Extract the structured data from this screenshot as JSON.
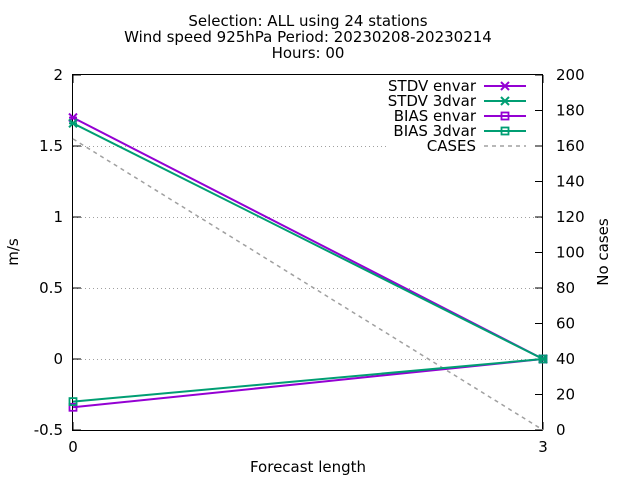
{
  "chart_data": {
    "type": "line",
    "title_lines": [
      "Selection: ALL using    24 stations",
      "Wind speed 925hPa   Period: 20230208-20230214",
      "Hours: 00"
    ],
    "xlabel": "Forecast length",
    "ylabel": "m/s",
    "y2label": "No cases",
    "x": [
      0,
      3
    ],
    "xticks": [
      "0",
      "3"
    ],
    "xlim": [
      0,
      3
    ],
    "ylim": [
      -0.5,
      2
    ],
    "yticks": [
      "-0.5",
      "0",
      "0.5",
      "1",
      "1.5",
      "2"
    ],
    "y2lim": [
      0,
      200
    ],
    "y2ticks": [
      "0",
      "20",
      "40",
      "60",
      "80",
      "100",
      "120",
      "140",
      "160",
      "180",
      "200"
    ],
    "grid": true,
    "legend_position": "top-right",
    "series": [
      {
        "name": "STDV envar",
        "axis": "y",
        "color": "#9400d3",
        "marker": "x-star",
        "dash": false,
        "values": [
          1.7,
          0.0
        ]
      },
      {
        "name": "STDV 3dvar",
        "axis": "y",
        "color": "#009e73",
        "marker": "x-star",
        "dash": false,
        "values": [
          1.66,
          0.0
        ]
      },
      {
        "name": "BIAS envar",
        "axis": "y",
        "color": "#9400d3",
        "marker": "square",
        "dash": false,
        "values": [
          -0.34,
          0.0
        ]
      },
      {
        "name": "BIAS 3dvar",
        "axis": "y",
        "color": "#009e73",
        "marker": "square",
        "dash": false,
        "values": [
          -0.3,
          0.0
        ]
      },
      {
        "name": "CASES",
        "axis": "y2",
        "color": "#a0a0a0",
        "marker": "none",
        "dash": true,
        "values": [
          164,
          0
        ]
      }
    ]
  }
}
